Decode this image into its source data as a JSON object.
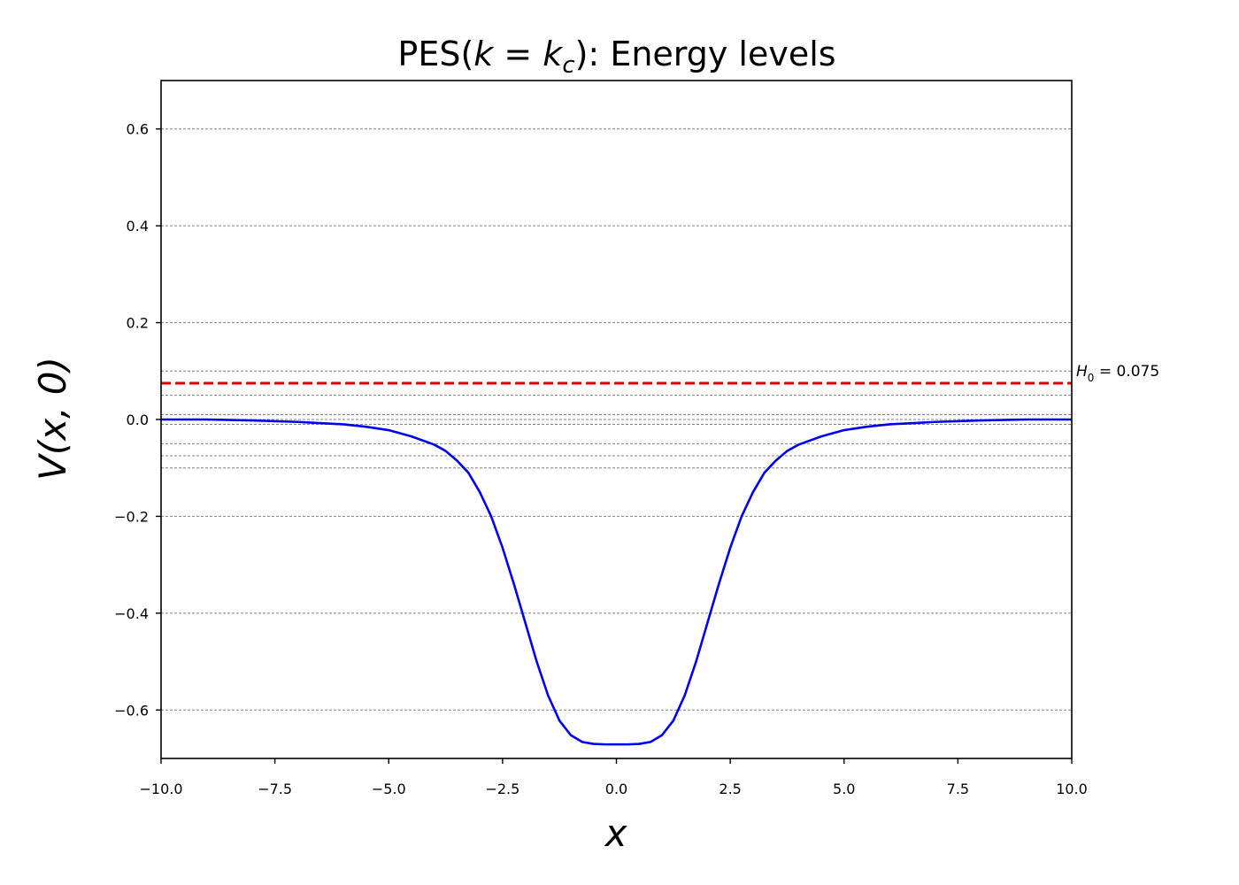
{
  "chart_data": {
    "type": "line",
    "title": {
      "prefix": "PES(",
      "k": "k",
      "eq": " = ",
      "kc": "k",
      "kc_sub": "c",
      "suffix": "): Energy levels"
    },
    "xlabel": "x",
    "ylabel": {
      "v": "V",
      "args": "(x, 0)"
    },
    "xlim": [
      -10,
      10
    ],
    "ylim": [
      -0.7,
      0.7
    ],
    "x_ticks": [
      -10,
      -7.5,
      -5,
      -2.5,
      0,
      2.5,
      5,
      7.5,
      10
    ],
    "x_tick_labels": [
      "−10.0",
      "−7.5",
      "−5.0",
      "−2.5",
      "0.0",
      "2.5",
      "5.0",
      "7.5",
      "10.0"
    ],
    "y_ticks": [
      0.6,
      0.4,
      0.2,
      0.0,
      -0.2,
      -0.4,
      -0.6
    ],
    "y_tick_labels": [
      "0.6",
      "0.4",
      "0.2",
      "0.0",
      "−0.2",
      "−0.4",
      "−0.6"
    ],
    "grid": "y",
    "energy_levels": [
      0.6,
      0.4,
      0.2,
      0.1,
      0.05,
      0.01,
      0.0,
      -0.01,
      -0.05,
      -0.075,
      -0.1,
      -0.2,
      -0.4,
      -0.6
    ],
    "hline": {
      "value": 0.075,
      "color": "#e00000",
      "label_sym": "H",
      "label_sub": "0",
      "label_val": " = 0.075"
    },
    "series": [
      {
        "color": "#0000ee",
        "x": [
          -10,
          -9,
          -8,
          -7,
          -6,
          -5.5,
          -5,
          -4.5,
          -4,
          -3.75,
          -3.5,
          -3.25,
          -3,
          -2.75,
          -2.5,
          -2.25,
          -2,
          -1.75,
          -1.5,
          -1.25,
          -1,
          -0.75,
          -0.5,
          -0.25,
          0,
          0.25,
          0.5,
          0.75,
          1,
          1.25,
          1.5,
          1.75,
          2,
          2.25,
          2.5,
          2.75,
          3,
          3.25,
          3.5,
          3.75,
          4,
          4.5,
          5,
          5.5,
          6,
          7,
          8,
          9,
          10
        ],
        "y": [
          0.0,
          0.0,
          -0.002,
          -0.005,
          -0.01,
          -0.015,
          -0.022,
          -0.035,
          -0.052,
          -0.065,
          -0.085,
          -0.11,
          -0.15,
          -0.2,
          -0.265,
          -0.34,
          -0.42,
          -0.5,
          -0.57,
          -0.622,
          -0.652,
          -0.666,
          -0.67,
          -0.671,
          -0.671,
          -0.671,
          -0.67,
          -0.666,
          -0.652,
          -0.622,
          -0.57,
          -0.5,
          -0.42,
          -0.34,
          -0.265,
          -0.2,
          -0.15,
          -0.11,
          -0.085,
          -0.065,
          -0.052,
          -0.035,
          -0.022,
          -0.015,
          -0.01,
          -0.005,
          -0.002,
          0.0,
          0.0
        ]
      }
    ]
  }
}
